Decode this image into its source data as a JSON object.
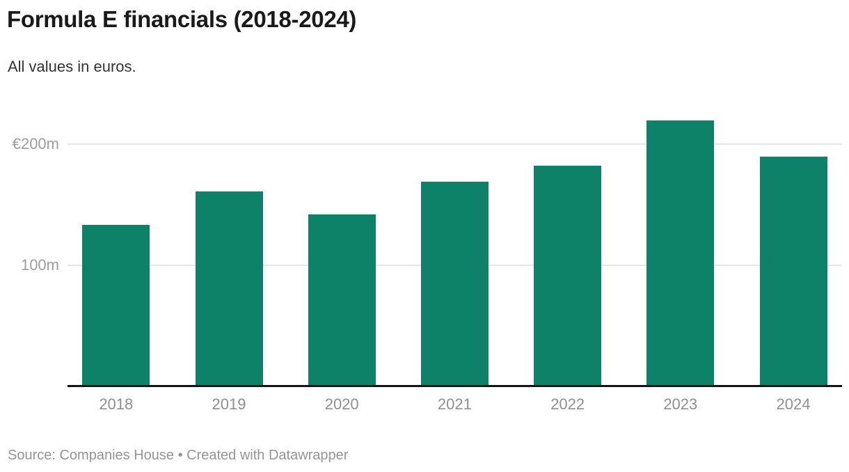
{
  "header": {
    "title": "Formula E financials (2018-2024)",
    "subtitle": "All values in euros."
  },
  "footer": {
    "text": "Source: Companies House • Created with Datawrapper"
  },
  "colors": {
    "bar": "#0d8269",
    "grid": "#e6e6e6",
    "axis_line": "#141414",
    "y_label": "#9d9d9d",
    "x_label": "#8f8f8f",
    "title_text": "#1a1a1a",
    "subtitle_text": "#333333",
    "footer_text": "#949494",
    "background": "#ffffff"
  },
  "chart_data": {
    "type": "bar",
    "title": "Formula E financials (2018-2024)",
    "subtitle": "All values in euros.",
    "categories": [
      "2018",
      "2019",
      "2020",
      "2021",
      "2022",
      "2023",
      "2024"
    ],
    "values": [
      133,
      161,
      142,
      169,
      182,
      220,
      190
    ],
    "unit": "million euros",
    "xlabel": "",
    "ylabel": "",
    "ylim": [
      0,
      227
    ],
    "yticks": [
      {
        "value": 100,
        "label": "100m"
      },
      {
        "value": 200,
        "label": "€200m"
      }
    ],
    "grid": "horizontal",
    "legend": "none",
    "source": "Companies House",
    "tool": "Datawrapper"
  }
}
